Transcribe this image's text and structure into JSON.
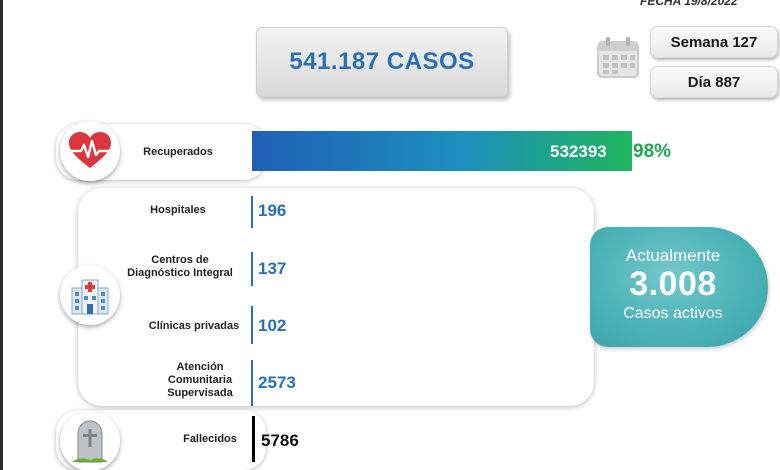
{
  "header": {
    "fecha": "FECHA 19/8/2022",
    "total_casos": "541.187 CASOS",
    "semana": "Semana 127",
    "dia": "Día 887"
  },
  "icons": {
    "calendar": "calendar-icon",
    "recovered": "heart-pulse-icon",
    "hospital": "hospital-building-icon",
    "deceased": "tombstone-icon"
  },
  "colors": {
    "accent_blue": "#2a6fb6",
    "recovered_green": "#1fb55d",
    "active_teal": "#4bb2b8",
    "deceased_black": "#000000"
  },
  "activos": {
    "line1": "Actualmente",
    "value": "3.008",
    "line3": "Casos activos"
  },
  "chart_data": {
    "type": "bar",
    "orientation": "horizontal",
    "title": "",
    "categories": [
      "Recuperados",
      "Hospitales",
      "Centros de Diagnóstico Integral",
      "Clínicas privadas",
      "Atención Comunitaria Supervisada",
      "Fallecidos"
    ],
    "values": [
      532393,
      196,
      137,
      102,
      2573,
      5786
    ],
    "value_labels": [
      "532393",
      "196",
      "137",
      "102",
      "2573",
      "5786"
    ],
    "recuperados_percent": "98%",
    "total": 541187,
    "label_lines": {
      "recuperados": [
        "Recuperados"
      ],
      "hospitales": [
        "Hospitales"
      ],
      "cdi": [
        "Centros de",
        "Diagnóstico Integral"
      ],
      "clinicas": [
        "Clínicas privadas"
      ],
      "acs": [
        "Atención",
        "Comunitaria",
        "Supervisada"
      ],
      "fallecidos": [
        "Fallecidos"
      ]
    }
  }
}
